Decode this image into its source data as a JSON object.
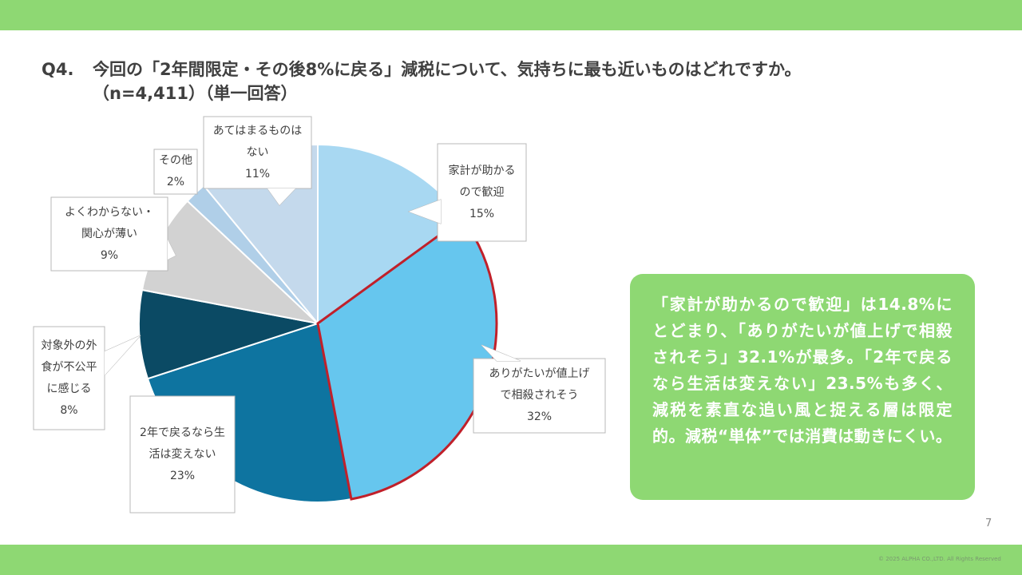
{
  "header": {
    "question_no": "Q4.",
    "question": "今回の「2年間限定・その後8%に戻る」減税について、気持ちに最も近いものはどれですか。",
    "sample": "（n=4,411）（単一回答）"
  },
  "chart_data": {
    "type": "pie",
    "start_angle_deg": 0,
    "direction": "clockwise",
    "highlight": {
      "slice_index": 1,
      "outline_color": "#C0202A"
    },
    "slices": [
      {
        "label": "家計が助かるので歓迎",
        "label_lines": [
          "家計が助かる",
          "ので歓迎"
        ],
        "value": 15,
        "value_label": "15%",
        "color": "#A8D8F2"
      },
      {
        "label": "ありがたいが値上げで相殺されそう",
        "label_lines": [
          "ありがたいが値上げ",
          "で相殺されそう"
        ],
        "value": 32,
        "value_label": "32%",
        "color": "#66C6EE"
      },
      {
        "label": "2年で戻るなら生活は変えない",
        "label_lines": [
          "2年で戻るなら生",
          "活は変えない"
        ],
        "value": 23,
        "value_label": "23%",
        "color": "#0E74A0"
      },
      {
        "label": "対象外の外食が不公平に感じる",
        "label_lines": [
          "対象外の外",
          "食が不公平",
          "に感じる"
        ],
        "value": 8,
        "value_label": "8%",
        "color": "#0B4A64"
      },
      {
        "label": "よくわからない・関心が薄い",
        "label_lines": [
          "よくわからない・",
          "関心が薄い"
        ],
        "value": 9,
        "value_label": "9%",
        "color": "#D2D2D2"
      },
      {
        "label": "その他",
        "label_lines": [
          "その他"
        ],
        "value": 2,
        "value_label": "2%",
        "color": "#B0CFE8"
      },
      {
        "label": "あてはまるものはない",
        "label_lines": [
          "あてはまるものは",
          "ない"
        ],
        "value": 11,
        "value_label": "11%",
        "color": "#C4D9EC"
      }
    ]
  },
  "summary": {
    "text": "「家計が助かるので歓迎」は14.8%にとどまり、「ありがたいが値上げで相殺されそう」32.1%が最多。「2年で戻るなら生活は変えない」23.5%も多く、減税を素直な追い風と捉える層は限定的。減税“単体”では消費は動きにくい。"
  },
  "footer": {
    "page_number": "7",
    "copyright": "© 2025 ALPHA CO.,LTD. All Rights Reserved"
  },
  "colors": {
    "band": "#8ED873",
    "summary_bg": "#8ED873",
    "callout_border": "#B8B8B8",
    "title_text": "#404040"
  }
}
